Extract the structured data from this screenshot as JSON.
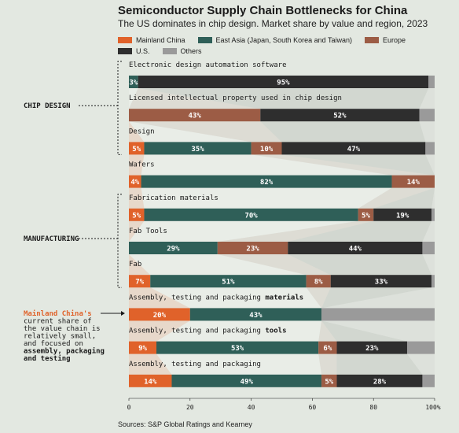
{
  "chart_data": {
    "type": "bar",
    "orientation": "horizontal",
    "stacked": true,
    "title": "Semiconductor Supply Chain Bottlenecks for China",
    "subtitle": "The US dominates in chip design. Market share by value and region, 2023",
    "source": "Sources: S&P Global Ratings and Kearney",
    "series": [
      {
        "name": "Mainland China",
        "color": "#e0622a"
      },
      {
        "name": "East Asia (Japan, South Korea and Taiwan)",
        "color": "#2f5f58"
      },
      {
        "name": "Europe",
        "color": "#9c5c45"
      },
      {
        "name": "U.S.",
        "color": "#2e2e2e"
      },
      {
        "name": "Others",
        "color": "#9a9a9a"
      }
    ],
    "rows": [
      {
        "label": "Electronic design automation software",
        "values": [
          0,
          3,
          0,
          95,
          2
        ],
        "labels": [
          "",
          "3%",
          "",
          "95%",
          ""
        ]
      },
      {
        "label": "Licensed intellectual property used in chip design",
        "values": [
          0,
          0,
          43,
          52,
          5
        ],
        "labels": [
          "",
          "",
          "43%",
          "52%",
          ""
        ]
      },
      {
        "label": "Design",
        "values": [
          5,
          35,
          10,
          47,
          3
        ],
        "labels": [
          "5%",
          "35%",
          "10%",
          "47%",
          ""
        ]
      },
      {
        "label": "Wafers",
        "values": [
          4,
          82,
          14,
          0,
          0
        ],
        "labels": [
          "4%",
          "82%",
          "14%",
          "",
          ""
        ]
      },
      {
        "label": "Fabrication materials",
        "values": [
          5,
          70,
          5,
          19,
          1
        ],
        "labels": [
          "5%",
          "70%",
          "5%",
          "19%",
          ""
        ]
      },
      {
        "label": "Fab Tools",
        "values": [
          0,
          29,
          23,
          44,
          4
        ],
        "labels": [
          "",
          "29%",
          "23%",
          "44%",
          ""
        ]
      },
      {
        "label": "Fab",
        "values": [
          7,
          51,
          8,
          33,
          1
        ],
        "labels": [
          "7%",
          "51%",
          "8%",
          "33%",
          ""
        ]
      },
      {
        "label_parts": [
          "Assembly, testing and packaging ",
          "materials"
        ],
        "values": [
          20,
          43,
          0,
          0,
          37
        ],
        "labels": [
          "20%",
          "43%",
          "",
          "",
          ""
        ]
      },
      {
        "label_parts": [
          "Assembly, testing and packaging ",
          "tools"
        ],
        "values": [
          9,
          53,
          6,
          23,
          9
        ],
        "labels": [
          "9%",
          "53%",
          "6%",
          "23%",
          ""
        ]
      },
      {
        "label": "Assembly, testing and packaging",
        "values": [
          14,
          49,
          5,
          28,
          4
        ],
        "labels": [
          "14%",
          "49%",
          "5%",
          "28%",
          ""
        ]
      }
    ],
    "groups": [
      {
        "name": "CHIP DESIGN",
        "rows": [
          0,
          1,
          2
        ]
      },
      {
        "name": "MANUFACTURING",
        "rows": [
          4,
          5,
          6
        ]
      }
    ],
    "annotation": {
      "highlight": "Mainland China's",
      "text_lines": [
        "current share of",
        "the value chain is",
        "relatively small,",
        "and focused on"
      ],
      "bold_lines": [
        "assembly, packaging",
        "and testing"
      ]
    },
    "x_ticks": [
      "0",
      "20",
      "40",
      "60",
      "80",
      "100%"
    ],
    "xlim": [
      0,
      100
    ],
    "grid": false,
    "legend_position": "top"
  }
}
